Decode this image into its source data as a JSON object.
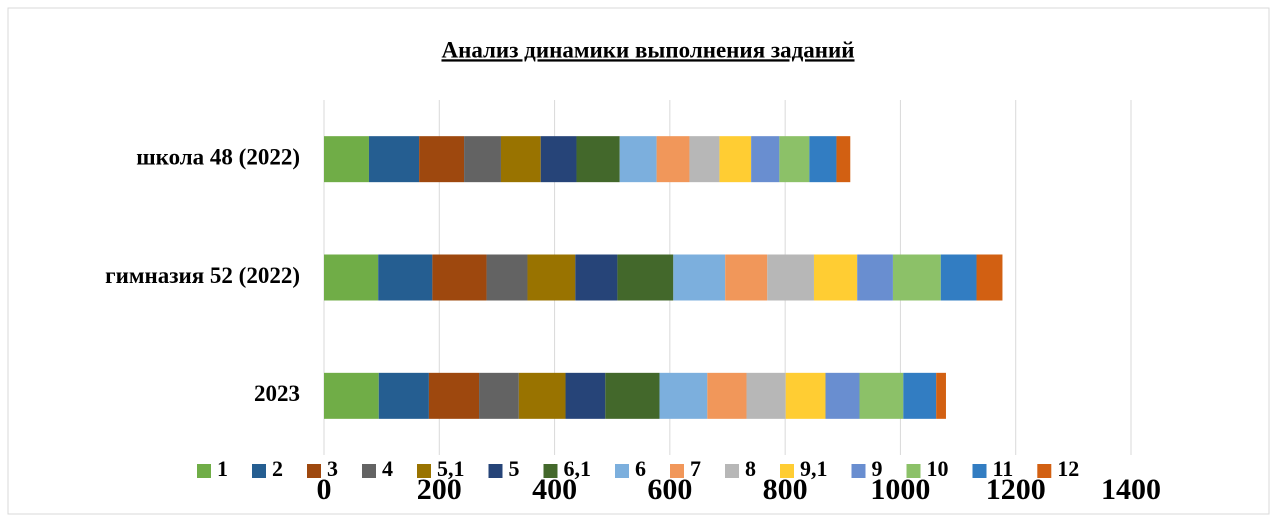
{
  "chart_data": {
    "type": "bar",
    "orientation": "horizontal",
    "stacked": true,
    "title": "Анализ динамики выполнения заданий",
    "categories": [
      "2023",
      "гимназия 52 (2022)",
      "школа 48 (2022)"
    ],
    "series": [
      {
        "name": "1",
        "color": "#70ad47",
        "values": [
          95,
          94,
          78
        ]
      },
      {
        "name": "2",
        "color": "#255e91",
        "values": [
          87,
          94,
          87
        ]
      },
      {
        "name": "3",
        "color": "#9e480e",
        "values": [
          87,
          94,
          78
        ]
      },
      {
        "name": "4",
        "color": "#636363",
        "values": [
          69,
          71,
          64
        ]
      },
      {
        "name": "5,1",
        "color": "#997300",
        "values": [
          81,
          83,
          69
        ]
      },
      {
        "name": "5",
        "color": "#264478",
        "values": [
          69,
          73,
          62
        ]
      },
      {
        "name": "6,1",
        "color": "#43682b",
        "values": [
          94,
          97,
          75
        ]
      },
      {
        "name": "6",
        "color": "#7cafdd",
        "values": [
          83,
          90,
          64
        ]
      },
      {
        "name": "7",
        "color": "#f1975a",
        "values": [
          68,
          73,
          57
        ]
      },
      {
        "name": "8",
        "color": "#b7b7b7",
        "values": [
          68,
          81,
          52
        ]
      },
      {
        "name": "9,1",
        "color": "#ffcd33",
        "values": [
          69,
          75,
          55
        ]
      },
      {
        "name": "9",
        "color": "#698ed0",
        "values": [
          59,
          62,
          49
        ]
      },
      {
        "name": "10",
        "color": "#8cc168",
        "values": [
          76,
          83,
          52
        ]
      },
      {
        "name": "11",
        "color": "#327dc2",
        "values": [
          57,
          62,
          47
        ]
      },
      {
        "name": "12",
        "color": "#d26012",
        "values": [
          17,
          45,
          24
        ]
      }
    ],
    "xlim": [
      0,
      1400
    ],
    "xticks": [
      0,
      200,
      400,
      600,
      800,
      1000,
      1200,
      1400
    ],
    "grid": true,
    "legend": "bottom"
  }
}
